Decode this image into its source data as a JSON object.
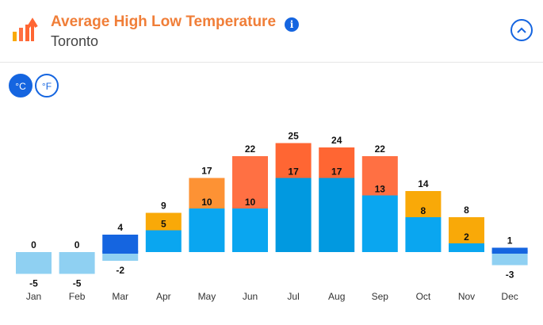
{
  "header": {
    "title": "Average High Low Temperature",
    "location": "Toronto",
    "info_icon": "i"
  },
  "units": {
    "celsius": "°C",
    "fahrenheit": "°F",
    "selected": "°C"
  },
  "colors": {
    "high_cold": "#f9a908",
    "high_mild": "#fd9234",
    "high_warm": "#ff7043",
    "high_hot": "#ff6633",
    "low_pale": "#8fd0f2",
    "low": "#0aa6f0",
    "low_deep": "#0199e0",
    "accent": "#1565e0"
  },
  "chart_data": {
    "type": "bar",
    "categories": [
      "Jan",
      "Feb",
      "Mar",
      "Apr",
      "May",
      "Jun",
      "Jul",
      "Aug",
      "Sep",
      "Oct",
      "Nov",
      "Dec"
    ],
    "series": [
      {
        "values": [
          0,
          0,
          4,
          9,
          17,
          22,
          25,
          24,
          22,
          14,
          8,
          1
        ]
      },
      {
        "values": [
          -5,
          -5,
          -2,
          5,
          10,
          10,
          17,
          17,
          13,
          8,
          2,
          -3
        ]
      }
    ],
    "unit": "°C"
  }
}
